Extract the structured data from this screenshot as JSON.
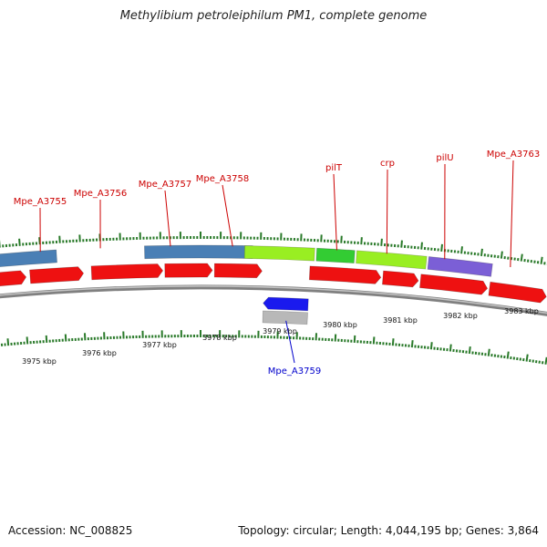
{
  "header": {
    "title": "Methylibium petroleiphilum PM1, complete genome"
  },
  "footer": {
    "accession": "Accession: NC_008825",
    "topology": "Topology: circular; Length: 4,044,195 bp; Genes: 3,864"
  },
  "colors": {
    "cds": "#ee1111",
    "gene_forward": "#4a7fb5",
    "gene_reverse": "#1a1aee",
    "gene_grey": "#b8b8b8",
    "pil_light": "#99ee22",
    "pil_dark": "#2a8a2a",
    "crp": "#33cc33",
    "purple": "#7b5fd6",
    "backbone": "#808080",
    "tick": "#2a7a2a",
    "label_forward": "#cc0000",
    "label_reverse": "#0000cc"
  },
  "scale": {
    "kbp_labels": [
      "3975 kbp",
      "3976 kbp",
      "3977 kbp",
      "3978 kbp",
      "3979 kbp",
      "3980 kbp",
      "3981 kbp",
      "3982 kbp",
      "3983 kbp"
    ]
  },
  "gene_labels": [
    {
      "text": "Mpe_A3755",
      "strand": "forward"
    },
    {
      "text": "Mpe_A3756",
      "strand": "forward"
    },
    {
      "text": "Mpe_A3757",
      "strand": "forward"
    },
    {
      "text": "Mpe_A3758",
      "strand": "forward"
    },
    {
      "text": "pilT",
      "strand": "forward"
    },
    {
      "text": "crp",
      "strand": "forward"
    },
    {
      "text": "pilU",
      "strand": "forward"
    },
    {
      "text": "Mpe_A3763",
      "strand": "forward"
    },
    {
      "text": "Mpe_A3759",
      "strand": "reverse"
    }
  ]
}
